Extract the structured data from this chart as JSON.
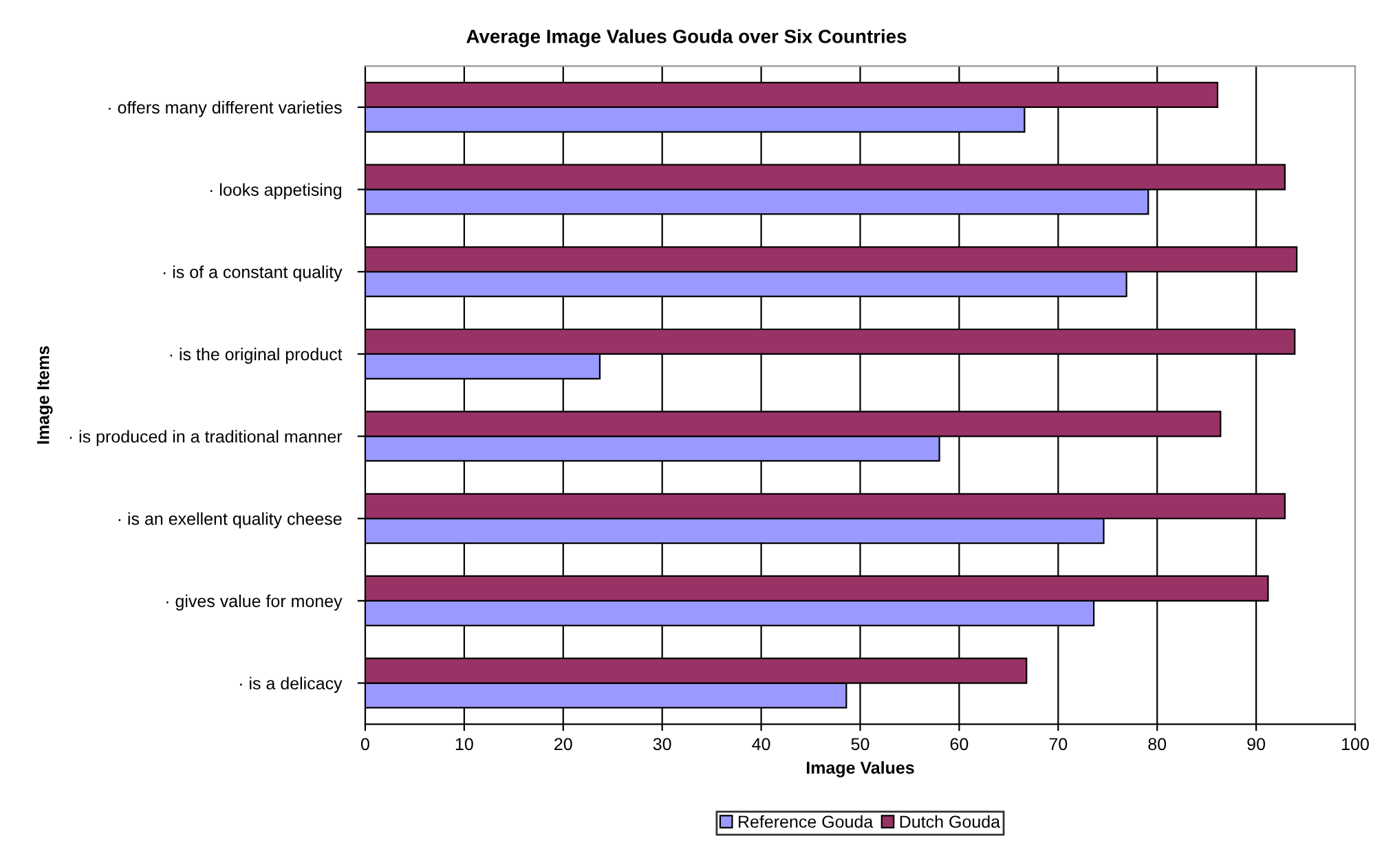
{
  "chart_data": {
    "type": "bar",
    "orientation": "horizontal",
    "title": "Average Image Values Gouda over Six Countries",
    "xlabel": "Image Values",
    "ylabel": "Image Items",
    "categories": [
      "· offers many different varieties",
      "· looks appetising",
      "· is of a constant quality",
      "· is the original product",
      "· is produced in a traditional manner",
      "· is an exellent quality cheese",
      "· gives value for money",
      "· is a delicacy"
    ],
    "series": [
      {
        "name": "Reference Gouda",
        "color": "#9999ff",
        "values": [
          66.6,
          79.1,
          76.9,
          23.7,
          58.0,
          74.6,
          73.6,
          48.6
        ]
      },
      {
        "name": "Dutch Gouda",
        "color": "#993366",
        "values": [
          86.1,
          92.9,
          94.1,
          93.9,
          86.4,
          92.9,
          91.2,
          66.8
        ]
      }
    ],
    "xlim": [
      0,
      100
    ],
    "xticks": [
      0,
      10,
      20,
      30,
      40,
      50,
      60,
      70,
      80,
      90,
      100
    ],
    "grid": "x",
    "legend": "bottom"
  }
}
